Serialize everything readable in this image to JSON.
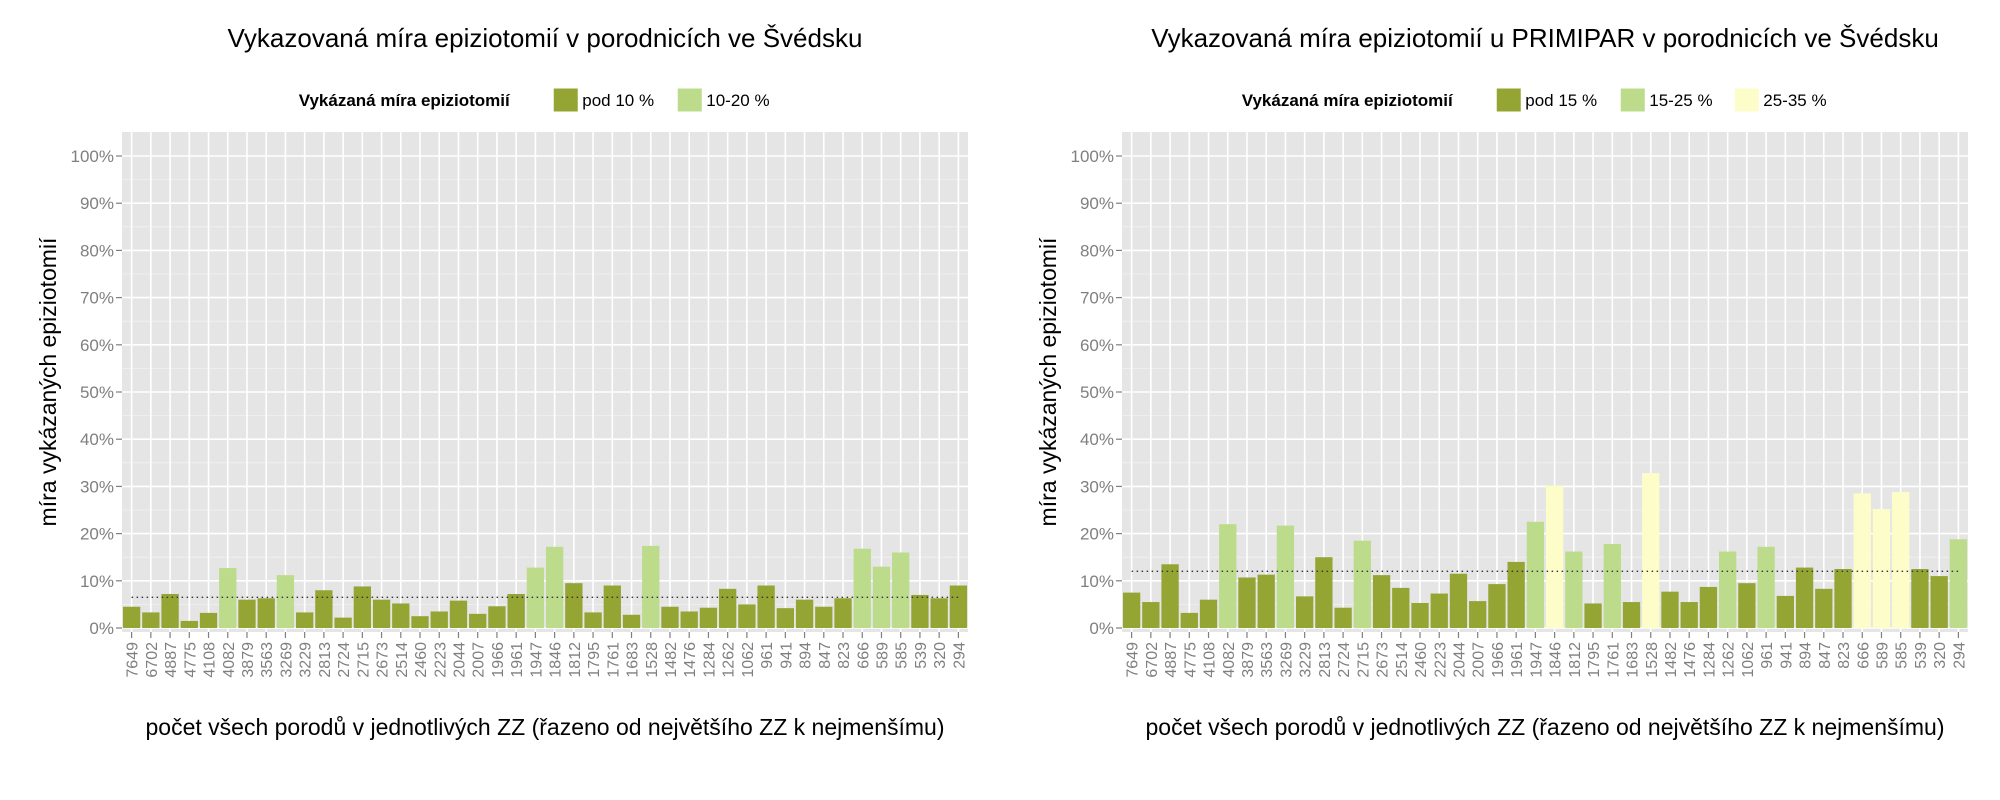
{
  "chart_data": [
    {
      "type": "bar",
      "title": "Vykazovaná míra epiziotomií v porodnicích ve Švédsku",
      "xlabel": "počet všech porodů v jednotlivých ZZ (řazeno od největšího ZZ k nejmenšímu)",
      "ylabel": "míra vykázaných epiziotomií",
      "ylim": [
        0,
        1
      ],
      "y_ticks": [
        "0%",
        "10%",
        "20%",
        "30%",
        "40%",
        "50%",
        "60%",
        "70%",
        "80%",
        "90%",
        "100%"
      ],
      "grid": true,
      "legend": {
        "title": "Vykázaná míra epiziotomií",
        "position": "top",
        "entries": [
          {
            "label": "pod 10 %",
            "color": "#94a533"
          },
          {
            "label": "10-20 %",
            "color": "#bcdc8c"
          }
        ]
      },
      "reference_line": {
        "value": 0.065,
        "style": "dotted"
      },
      "categories": [
        "7649",
        "6702",
        "4887",
        "4775",
        "4108",
        "4082",
        "3879",
        "3563",
        "3269",
        "3229",
        "2813",
        "2724",
        "2715",
        "2673",
        "2514",
        "2460",
        "2223",
        "2044",
        "2007",
        "1966",
        "1961",
        "1947",
        "1846",
        "1812",
        "1795",
        "1761",
        "1683",
        "1528",
        "1482",
        "1476",
        "1284",
        "1262",
        "1062",
        "961",
        "941",
        "894",
        "847",
        "823",
        "666",
        "589",
        "585",
        "539",
        "320",
        "294"
      ],
      "values": [
        0.045,
        0.033,
        0.072,
        0.015,
        0.032,
        0.127,
        0.06,
        0.063,
        0.112,
        0.033,
        0.08,
        0.022,
        0.088,
        0.06,
        0.052,
        0.025,
        0.035,
        0.058,
        0.03,
        0.046,
        0.072,
        0.128,
        0.172,
        0.095,
        0.033,
        0.09,
        0.028,
        0.174,
        0.045,
        0.035,
        0.043,
        0.083,
        0.05,
        0.09,
        0.042,
        0.06,
        0.045,
        0.063,
        0.168,
        0.13,
        0.16,
        0.07,
        0.063,
        0.09
      ],
      "bin_index": [
        0,
        0,
        0,
        0,
        0,
        1,
        0,
        0,
        1,
        0,
        0,
        0,
        0,
        0,
        0,
        0,
        0,
        0,
        0,
        0,
        0,
        1,
        1,
        0,
        0,
        0,
        0,
        1,
        0,
        0,
        0,
        0,
        0,
        0,
        0,
        0,
        0,
        0,
        1,
        1,
        1,
        0,
        0,
        0
      ]
    },
    {
      "type": "bar",
      "title": "Vykazovaná míra epiziotomií u PRIMIPAR v porodnicích ve Švédsku",
      "xlabel": "počet všech porodů v jednotlivých ZZ (řazeno od největšího ZZ k nejmenšímu)",
      "ylabel": "míra vykázaných epiziotomií",
      "ylim": [
        0,
        1
      ],
      "y_ticks": [
        "0%",
        "10%",
        "20%",
        "30%",
        "40%",
        "50%",
        "60%",
        "70%",
        "80%",
        "90%",
        "100%"
      ],
      "grid": true,
      "legend": {
        "title": "Vykázaná míra epiziotomií",
        "position": "top",
        "entries": [
          {
            "label": "pod 15 %",
            "color": "#94a533"
          },
          {
            "label": "15-25 %",
            "color": "#bcdc8c"
          },
          {
            "label": "25-35 %",
            "color": "#fdfdc9"
          }
        ]
      },
      "reference_line": {
        "value": 0.12,
        "style": "dotted"
      },
      "categories": [
        "7649",
        "6702",
        "4887",
        "4775",
        "4108",
        "4082",
        "3879",
        "3563",
        "3269",
        "3229",
        "2813",
        "2724",
        "2715",
        "2673",
        "2514",
        "2460",
        "2223",
        "2044",
        "2007",
        "1966",
        "1961",
        "1947",
        "1846",
        "1812",
        "1795",
        "1761",
        "1683",
        "1528",
        "1482",
        "1476",
        "1284",
        "1262",
        "1062",
        "961",
        "941",
        "894",
        "847",
        "823",
        "666",
        "589",
        "585",
        "539",
        "320",
        "294"
      ],
      "values": [
        0.075,
        0.055,
        0.135,
        0.032,
        0.06,
        0.22,
        0.107,
        0.113,
        0.217,
        0.067,
        0.15,
        0.043,
        0.185,
        0.112,
        0.085,
        0.053,
        0.073,
        0.115,
        0.057,
        0.093,
        0.14,
        0.225,
        0.302,
        0.162,
        0.052,
        0.178,
        0.055,
        0.328,
        0.077,
        0.055,
        0.087,
        0.162,
        0.095,
        0.172,
        0.068,
        0.128,
        0.083,
        0.125,
        0.285,
        0.252,
        0.288,
        0.125,
        0.11,
        0.188
      ],
      "bin_index": [
        0,
        0,
        0,
        0,
        0,
        1,
        0,
        0,
        1,
        0,
        0,
        0,
        1,
        0,
        0,
        0,
        0,
        0,
        0,
        0,
        0,
        1,
        2,
        1,
        0,
        1,
        0,
        2,
        0,
        0,
        0,
        1,
        0,
        1,
        0,
        0,
        0,
        0,
        2,
        2,
        2,
        0,
        0,
        1
      ]
    }
  ]
}
